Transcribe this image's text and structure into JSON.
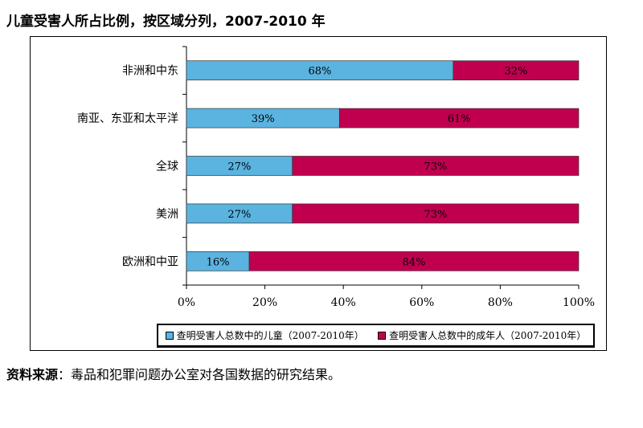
{
  "chart_data": {
    "type": "bar",
    "orientation": "horizontal",
    "stacked": true,
    "title": "儿童受害人所占比例，按区域分列，2007-2010 年",
    "categories": [
      "非洲和中东",
      "南亚、东亚和太平洋",
      "全球",
      "美洲",
      "欧洲和中亚"
    ],
    "series": [
      {
        "name": "查明受害人总数中的儿童（2007-2010年）",
        "values": [
          68,
          39,
          27,
          27,
          16
        ],
        "labels": [
          "68%",
          "39%",
          "27%",
          "27%",
          "16%"
        ],
        "color": "#5bb3e0"
      },
      {
        "name": "查明受害人总数中的成年人（2007-2010年）",
        "values": [
          32,
          61,
          73,
          73,
          84
        ],
        "labels": [
          "32%",
          "61%",
          "73%",
          "73%",
          "84%"
        ],
        "color": "#c0004f"
      }
    ],
    "xlim": [
      0,
      100
    ],
    "xticks": [
      "0%",
      "20%",
      "40%",
      "60%",
      "80%",
      "100%"
    ],
    "grid": false,
    "legend": "bottom"
  },
  "source": {
    "label": "资料来源",
    "text": "：毒品和犯罪问题办公室对各国数据的研究结果。"
  }
}
